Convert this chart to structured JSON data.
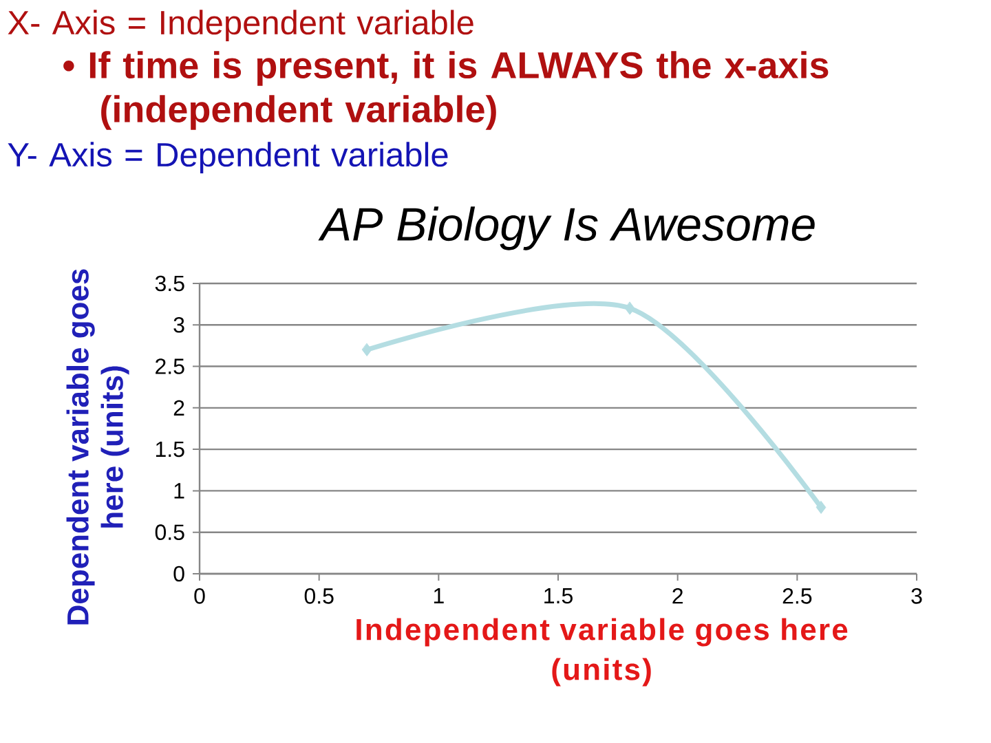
{
  "chart_data": {
    "type": "line",
    "title": "AP Biology Is Awesome",
    "xlabel": "Independent variable goes here (units)",
    "ylabel": "Dependent variable goes here (units)",
    "annotations": [
      "X- Axis = Independent variable",
      "• If time is present, it is ALWAYS the x-axis (independent variable)",
      "Y- Axis = Dependent variable"
    ],
    "x": [
      0.7,
      1.8,
      2.6
    ],
    "series": [
      {
        "color": "#b4dde2",
        "values": [
          2.7,
          3.2,
          0.8
        ]
      }
    ],
    "xlim": [
      0,
      3
    ],
    "ylim": [
      0,
      3.5
    ],
    "xticks": [
      0,
      0.5,
      1,
      1.5,
      2,
      2.5,
      3
    ],
    "yticks": [
      0,
      0.5,
      1,
      1.5,
      2,
      2.5,
      3,
      3.5
    ],
    "grid": "y",
    "legend": false,
    "marker": "diamond",
    "line_style": "solid"
  }
}
